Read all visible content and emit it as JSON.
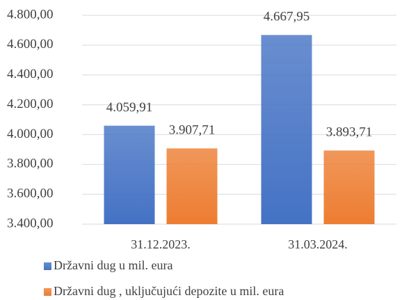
{
  "chart_data": {
    "type": "bar",
    "categories": [
      "31.12.2023.",
      "31.03.2024."
    ],
    "series": [
      {
        "name": "Državni dug u mil. eura",
        "color": "#4472c4",
        "values": [
          4059.91,
          4667.95
        ],
        "value_labels": [
          "4.059,91",
          "4.667,95"
        ]
      },
      {
        "name": "Državni dug , uključujući depozite u mil. eura",
        "color": "#ed7d31",
        "values": [
          3907.71,
          3893.71
        ],
        "value_labels": [
          "3.907,71",
          "3.893,71"
        ]
      }
    ],
    "ylim": [
      3400,
      4800
    ],
    "yticks": [
      {
        "value": 3400,
        "label": "3.400,00"
      },
      {
        "value": 3600,
        "label": "3.600,00"
      },
      {
        "value": 3800,
        "label": "3.800,00"
      },
      {
        "value": 4000,
        "label": "4.000,00"
      },
      {
        "value": 4200,
        "label": "4.200,00"
      },
      {
        "value": 4400,
        "label": "4.400,00"
      },
      {
        "value": 4600,
        "label": "4.600,00"
      },
      {
        "value": 4800,
        "label": "4.800,00"
      }
    ],
    "grid": true,
    "legend": "bottom"
  }
}
